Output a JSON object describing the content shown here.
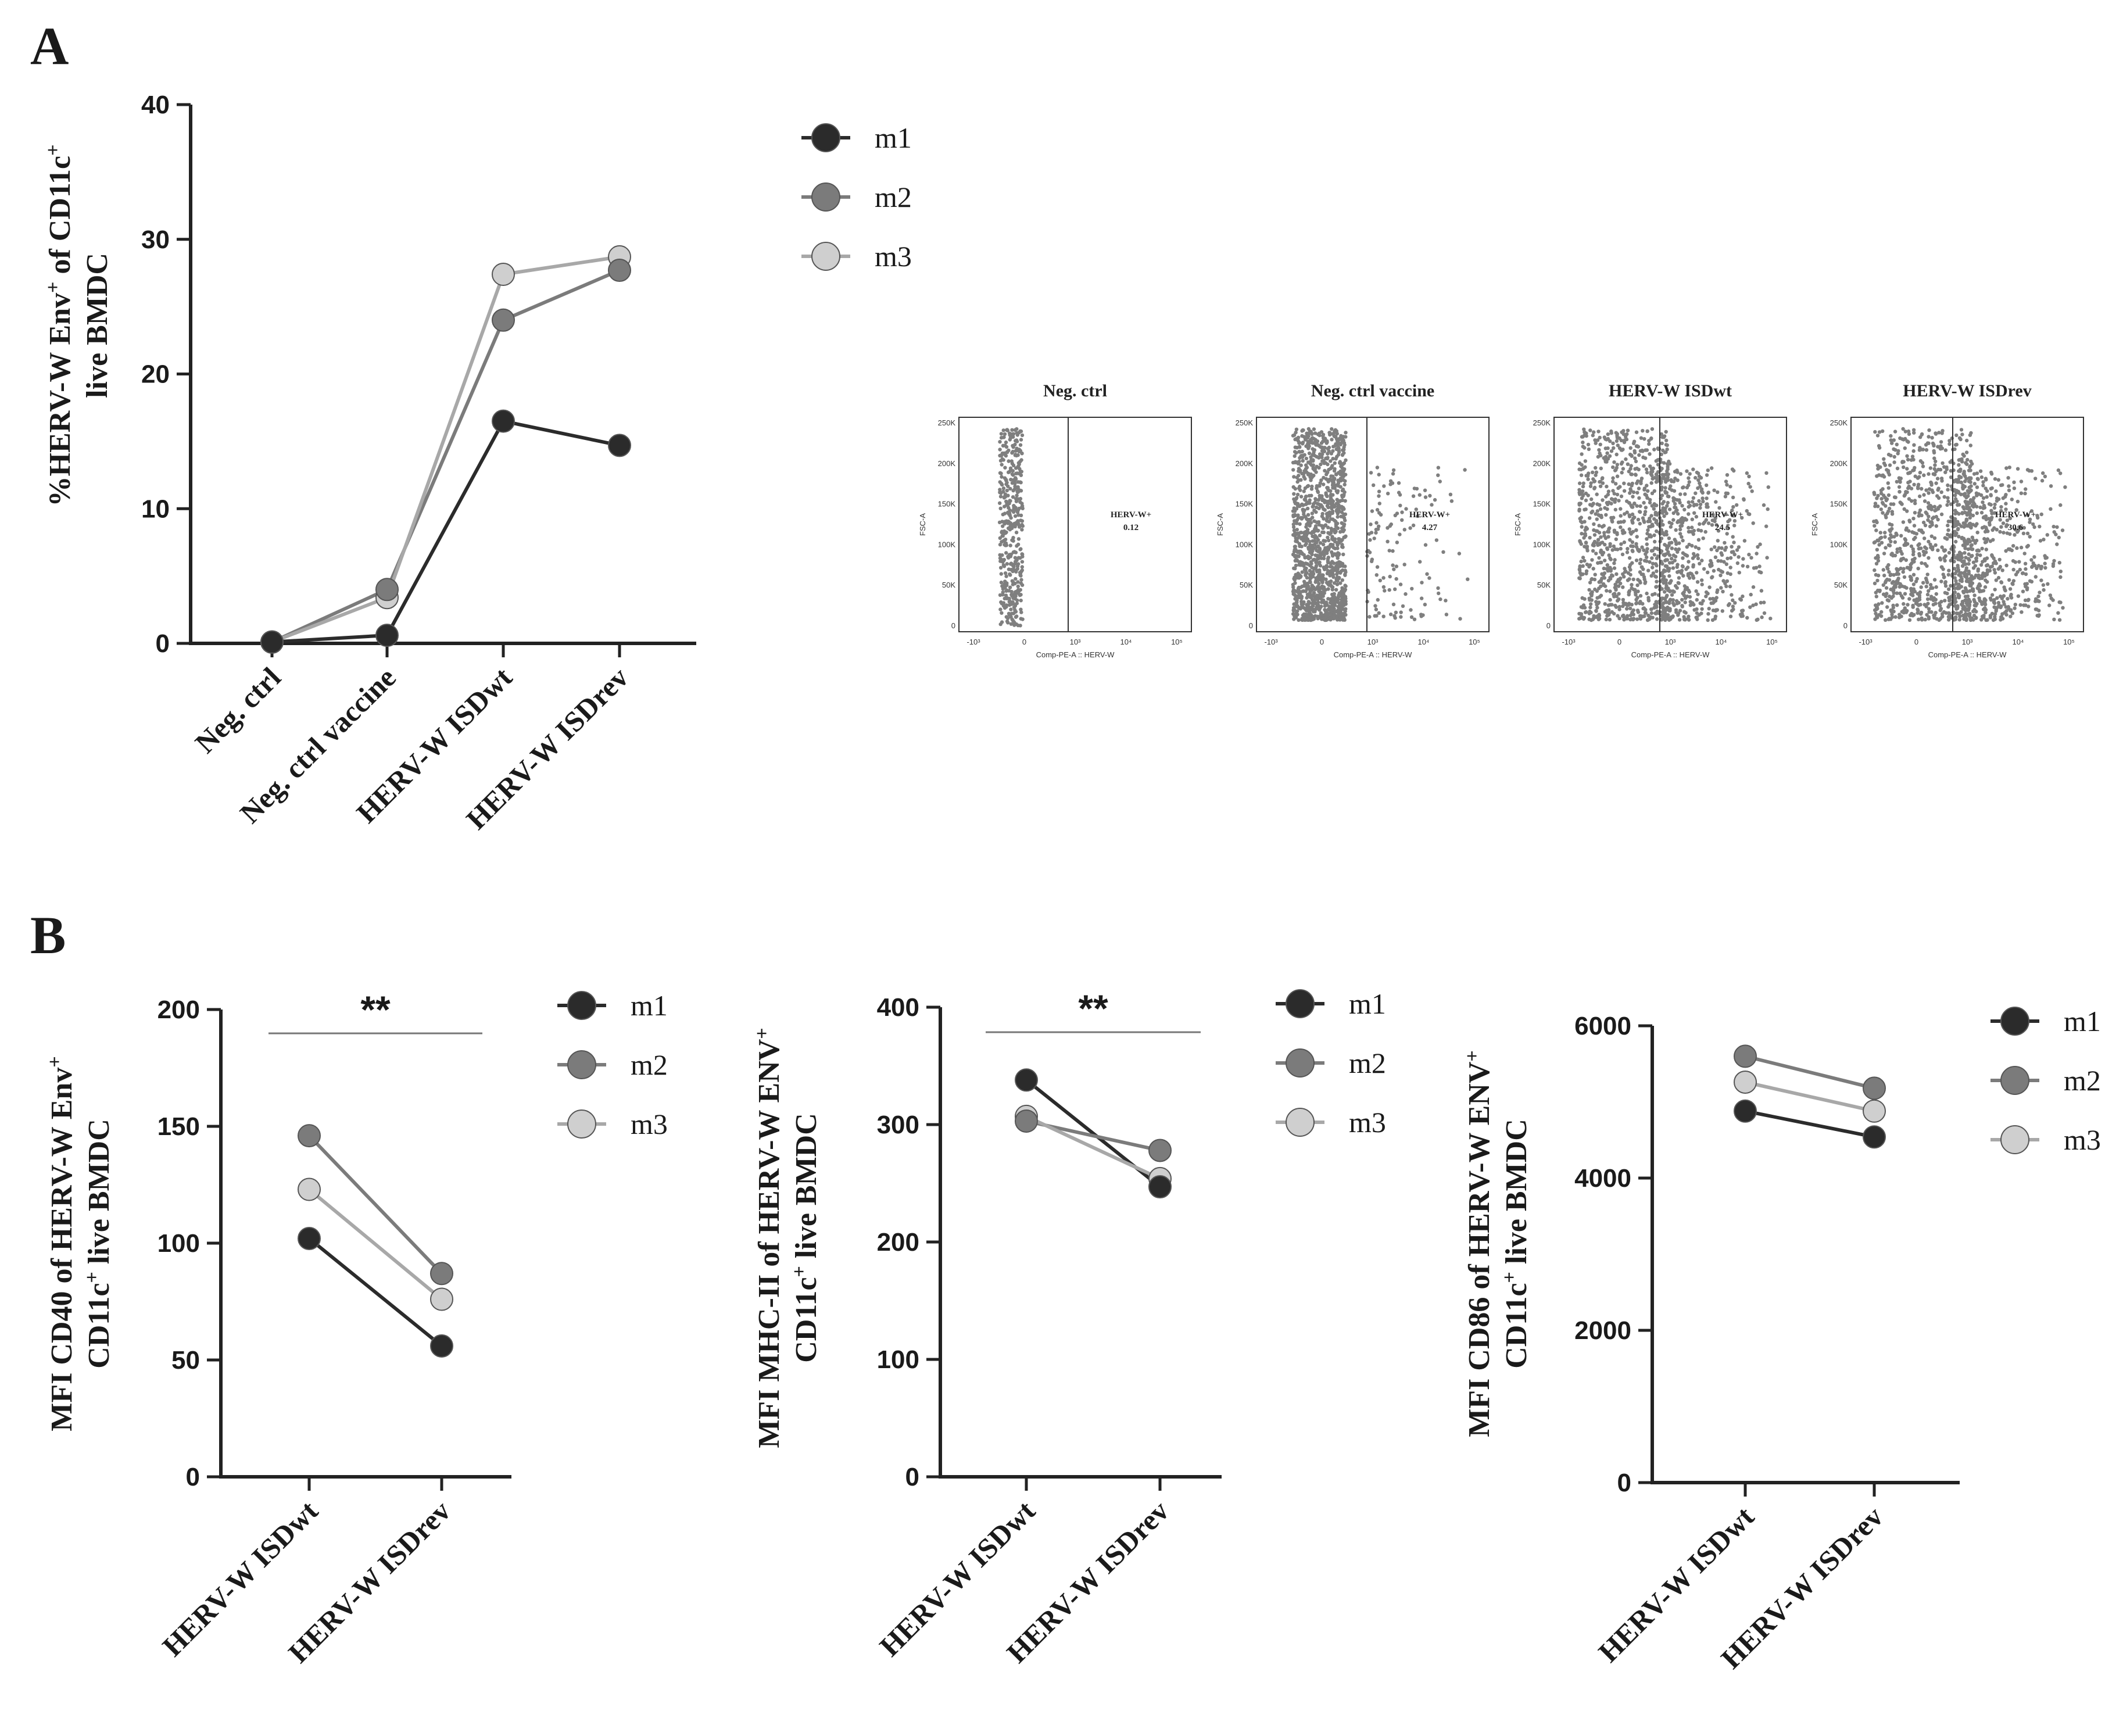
{
  "panels": {
    "a": "A",
    "b": "B"
  },
  "legend_series": [
    "m1",
    "m2",
    "m3"
  ],
  "colors": {
    "m1": "#2b2b2b",
    "m2": "#7b7b7b",
    "m3": "#cfcfcf",
    "m1_line": "#2b2b2b",
    "m2_line": "#7b7b7b",
    "m3_line": "#a8a8a8",
    "dots": "#7f7f7f"
  },
  "chart_data": [
    {
      "id": "A",
      "type": "line",
      "ylabel_line1": "%HERV-W Env",
      "ylabel_sup1": "+",
      "ylabel_mid": " of CD11c",
      "ylabel_sup2": "+",
      "ylabel_line2": "live BMDC",
      "categories": [
        "Neg. ctrl",
        "Neg. ctrl vaccine",
        "HERV-W ISDwt",
        "HERV-W ISDrev"
      ],
      "ylim": [
        0,
        40
      ],
      "yticks": [
        "0",
        "10",
        "20",
        "30",
        "40"
      ],
      "series": [
        {
          "name": "m1",
          "values": [
            0.1,
            0.6,
            16.5,
            14.7
          ]
        },
        {
          "name": "m2",
          "values": [
            0.1,
            4.0,
            24.0,
            27.7
          ]
        },
        {
          "name": "m3",
          "values": [
            0.1,
            3.4,
            27.4,
            28.7
          ]
        }
      ]
    },
    {
      "id": "B1",
      "type": "line",
      "ylabel_line1": "MFI CD40 of HERV-W Env",
      "ylabel_sup1": "+",
      "ylabel_line2": "CD11c",
      "ylabel_sup2": "+",
      "ylabel_tail": " live BMDC",
      "categories": [
        "HERV-W ISDwt",
        "HERV-W ISDrev"
      ],
      "ylim": [
        0,
        200
      ],
      "yticks": [
        "0",
        "50",
        "100",
        "150",
        "200"
      ],
      "significance": "**",
      "series": [
        {
          "name": "m1",
          "values": [
            102,
            56
          ]
        },
        {
          "name": "m2",
          "values": [
            146,
            87
          ]
        },
        {
          "name": "m3",
          "values": [
            123,
            76
          ]
        }
      ]
    },
    {
      "id": "B2",
      "type": "line",
      "ylabel_line1": "MFI MHC-II of HERV-W ENV",
      "ylabel_sup1": "+",
      "ylabel_line2": "CD11c",
      "ylabel_sup2": "+",
      "ylabel_tail": " live BMDC",
      "categories": [
        "HERV-W ISDwt",
        "HERV-W ISDrev"
      ],
      "ylim": [
        0,
        400
      ],
      "yticks": [
        "0",
        "100",
        "200",
        "300",
        "400"
      ],
      "significance": "**",
      "series": [
        {
          "name": "m1",
          "values": [
            338,
            247
          ]
        },
        {
          "name": "m2",
          "values": [
            303,
            278
          ]
        },
        {
          "name": "m3",
          "values": [
            307,
            254
          ]
        }
      ]
    },
    {
      "id": "B3",
      "type": "line",
      "ylabel_line1": "MFI CD86 of HERV-W ENV",
      "ylabel_sup1": "+",
      "ylabel_line2": "CD11c",
      "ylabel_sup2": "+",
      "ylabel_tail": " live BMDC",
      "categories": [
        "HERV-W ISDwt",
        "HERV-W ISDrev"
      ],
      "ylim": [
        0,
        6000
      ],
      "yticks": [
        "0",
        "2000",
        "4000",
        "6000"
      ],
      "series": [
        {
          "name": "m1",
          "values": [
            4880,
            4540
          ]
        },
        {
          "name": "m2",
          "values": [
            5600,
            5180
          ]
        },
        {
          "name": "m3",
          "values": [
            5260,
            4880
          ]
        }
      ]
    },
    {
      "id": "flow",
      "type": "scatter",
      "ylabel": "FSC-A",
      "xlabel": "Comp-PE-A :: HERV-W",
      "yticks": [
        "250K",
        "200K",
        "150K",
        "100K",
        "50K",
        "0"
      ],
      "xticks": [
        "-10³",
        "0",
        "10³",
        "10⁴",
        "10⁵"
      ],
      "plots": [
        {
          "title": "Neg. ctrl",
          "gate_label": "HERV-W+",
          "gate_value": "0.12"
        },
        {
          "title": "Neg. ctrl vaccine",
          "gate_label": "HERV-W+",
          "gate_value": "4.27"
        },
        {
          "title": "HERV-W ISDwt",
          "gate_label": "HERV-W+",
          "gate_value": "24.5"
        },
        {
          "title": "HERV-W ISDrev",
          "gate_label": "HERV-W+",
          "gate_value": "30.6"
        }
      ]
    }
  ]
}
